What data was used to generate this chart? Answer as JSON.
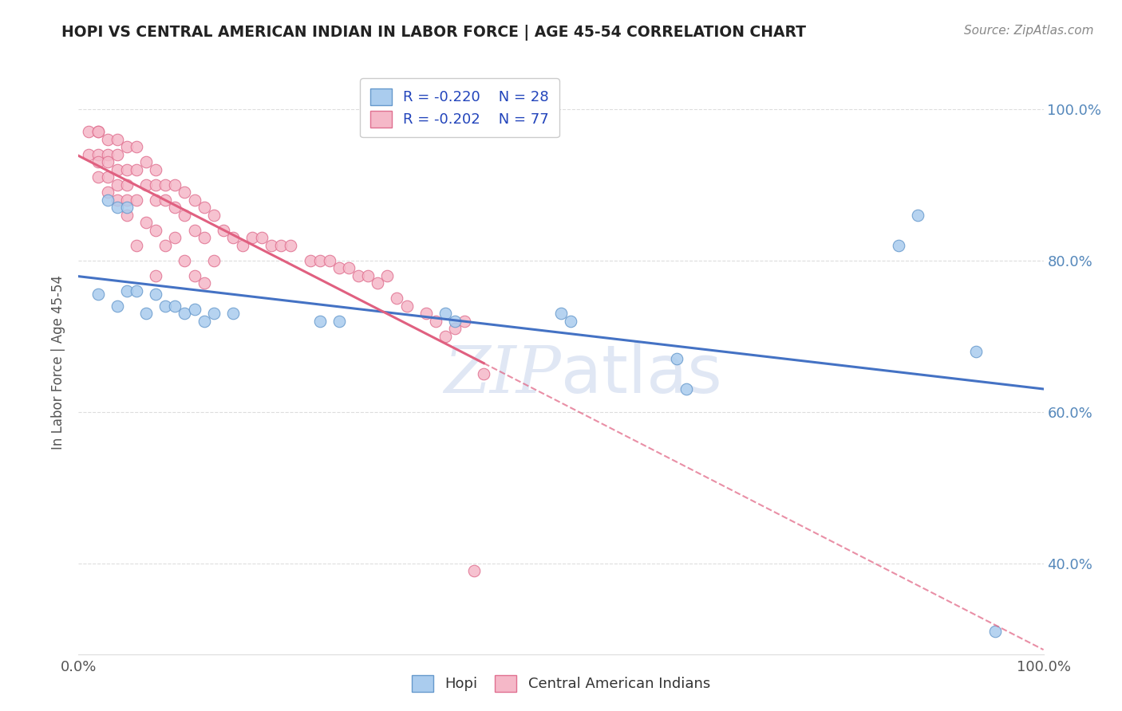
{
  "title": "HOPI VS CENTRAL AMERICAN INDIAN IN LABOR FORCE | AGE 45-54 CORRELATION CHART",
  "source": "Source: ZipAtlas.com",
  "ylabel": "In Labor Force | Age 45-54",
  "xlim": [
    0.0,
    1.0
  ],
  "ylim": [
    0.28,
    1.05
  ],
  "x_ticks": [
    0.0,
    0.25,
    0.5,
    0.75,
    1.0
  ],
  "x_tick_labels": [
    "0.0%",
    "",
    "",
    "",
    "100.0%"
  ],
  "y_tick_vals_right": [
    0.4,
    0.6,
    0.8,
    1.0
  ],
  "y_tick_labels_right": [
    "40.0%",
    "60.0%",
    "80.0%",
    "100.0%"
  ],
  "hopi_color": "#aaccee",
  "hopi_edge_color": "#6699cc",
  "central_color": "#f5b8c8",
  "central_edge_color": "#e07090",
  "trend_hopi_color": "#4472c4",
  "trend_central_color": "#e06080",
  "watermark_color": "#ccd8ee",
  "hopi_scatter_x": [
    0.02,
    0.03,
    0.04,
    0.04,
    0.05,
    0.05,
    0.06,
    0.07,
    0.08,
    0.09,
    0.1,
    0.11,
    0.12,
    0.13,
    0.14,
    0.16,
    0.25,
    0.27,
    0.38,
    0.39,
    0.5,
    0.51,
    0.62,
    0.63,
    0.85,
    0.87,
    0.93,
    0.95
  ],
  "hopi_scatter_y": [
    0.755,
    0.88,
    0.87,
    0.74,
    0.87,
    0.76,
    0.76,
    0.73,
    0.755,
    0.74,
    0.74,
    0.73,
    0.735,
    0.72,
    0.73,
    0.73,
    0.72,
    0.72,
    0.73,
    0.72,
    0.73,
    0.72,
    0.67,
    0.63,
    0.82,
    0.86,
    0.68,
    0.31
  ],
  "central_scatter_x": [
    0.01,
    0.01,
    0.02,
    0.02,
    0.02,
    0.02,
    0.02,
    0.03,
    0.03,
    0.03,
    0.03,
    0.03,
    0.04,
    0.04,
    0.04,
    0.04,
    0.04,
    0.05,
    0.05,
    0.05,
    0.05,
    0.05,
    0.06,
    0.06,
    0.06,
    0.06,
    0.07,
    0.07,
    0.07,
    0.08,
    0.08,
    0.08,
    0.08,
    0.08,
    0.09,
    0.09,
    0.09,
    0.1,
    0.1,
    0.1,
    0.11,
    0.11,
    0.11,
    0.12,
    0.12,
    0.12,
    0.13,
    0.13,
    0.13,
    0.14,
    0.14,
    0.15,
    0.16,
    0.17,
    0.18,
    0.19,
    0.2,
    0.21,
    0.22,
    0.24,
    0.25,
    0.26,
    0.27,
    0.28,
    0.29,
    0.3,
    0.31,
    0.32,
    0.33,
    0.34,
    0.36,
    0.37,
    0.38,
    0.39,
    0.4,
    0.41,
    0.42
  ],
  "central_scatter_y": [
    0.97,
    0.94,
    0.97,
    0.97,
    0.94,
    0.93,
    0.91,
    0.96,
    0.94,
    0.93,
    0.91,
    0.89,
    0.96,
    0.94,
    0.92,
    0.9,
    0.88,
    0.95,
    0.92,
    0.9,
    0.88,
    0.86,
    0.95,
    0.92,
    0.88,
    0.82,
    0.93,
    0.9,
    0.85,
    0.92,
    0.9,
    0.88,
    0.84,
    0.78,
    0.9,
    0.88,
    0.82,
    0.9,
    0.87,
    0.83,
    0.89,
    0.86,
    0.8,
    0.88,
    0.84,
    0.78,
    0.87,
    0.83,
    0.77,
    0.86,
    0.8,
    0.84,
    0.83,
    0.82,
    0.83,
    0.83,
    0.82,
    0.82,
    0.82,
    0.8,
    0.8,
    0.8,
    0.79,
    0.79,
    0.78,
    0.78,
    0.77,
    0.78,
    0.75,
    0.74,
    0.73,
    0.72,
    0.7,
    0.71,
    0.72,
    0.39,
    0.65
  ]
}
